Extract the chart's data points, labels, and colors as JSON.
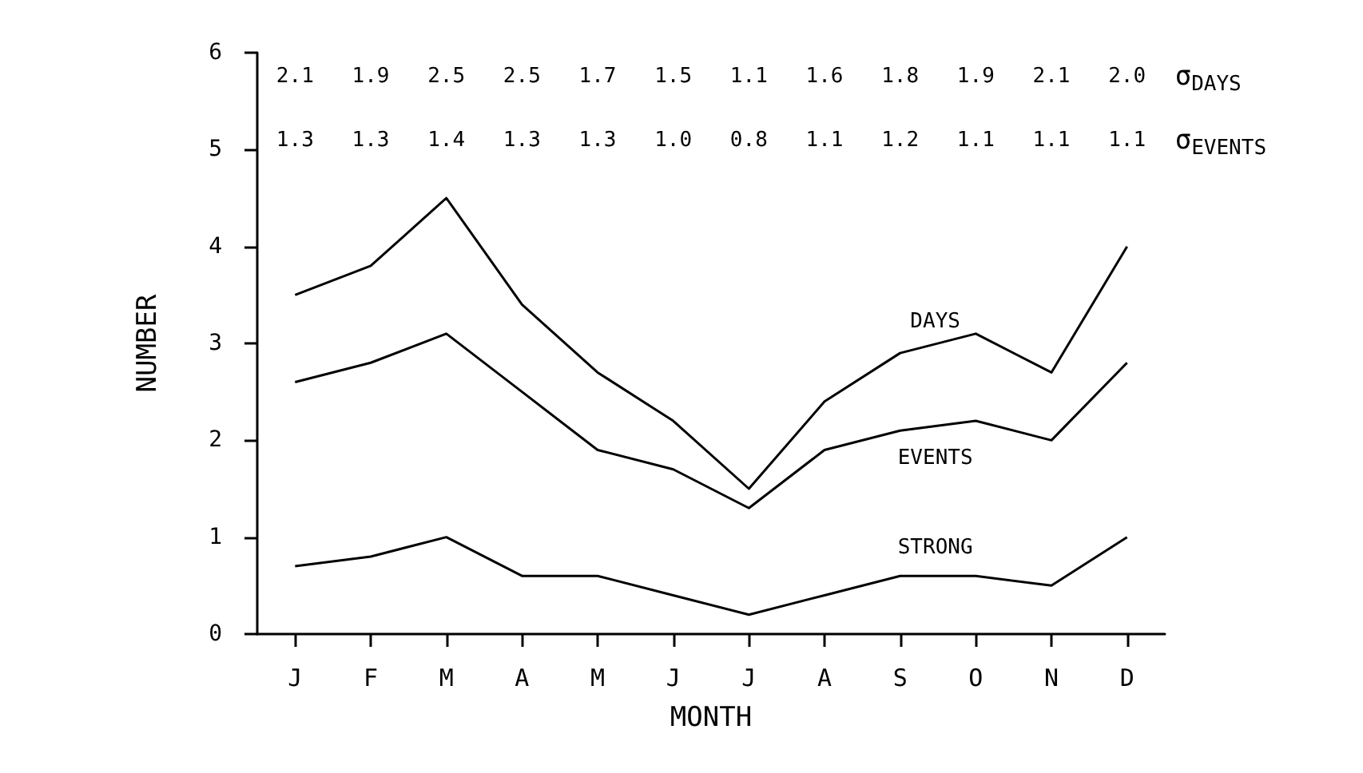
{
  "chart_data": {
    "type": "line",
    "xlabel": "MONTH",
    "ylabel": "NUMBER",
    "categories": [
      "J",
      "F",
      "M",
      "A",
      "M",
      "J",
      "J",
      "A",
      "S",
      "O",
      "N",
      "D"
    ],
    "series": [
      {
        "name": "DAYS",
        "color": "#000000",
        "values": [
          3.5,
          3.8,
          4.5,
          3.4,
          2.7,
          2.2,
          1.5,
          2.4,
          2.9,
          3.1,
          2.7,
          4.0
        ]
      },
      {
        "name": "EVENTS",
        "color": "#000000",
        "values": [
          2.6,
          2.8,
          3.1,
          2.5,
          1.9,
          1.7,
          1.3,
          1.9,
          2.1,
          2.2,
          2.0,
          2.8
        ]
      },
      {
        "name": "STRONG",
        "color": "#000000",
        "values": [
          0.7,
          0.8,
          1.0,
          0.6,
          0.6,
          0.4,
          0.2,
          0.4,
          0.6,
          0.6,
          0.5,
          1.0
        ]
      }
    ],
    "annotations": [
      "2.1 1.9 2.5 2.5 1.7 1.5 1.1 1.6 1.8 1.9 2.1 2.0",
      "σ$_{DAYS}$",
      "1.3 1.3 1.4 1.3 1.3 1.0 0.8 1.1 1.2 1.1 1.1 1.1",
      "σ$_{EVENTS}$"
    ],
    "ylim": [
      0,
      6
    ],
    "yticks": [
      0,
      1,
      2,
      3,
      4,
      5,
      6
    ],
    "grid": false,
    "legend": false,
    "marker": "none",
    "line_style": "solid"
  }
}
